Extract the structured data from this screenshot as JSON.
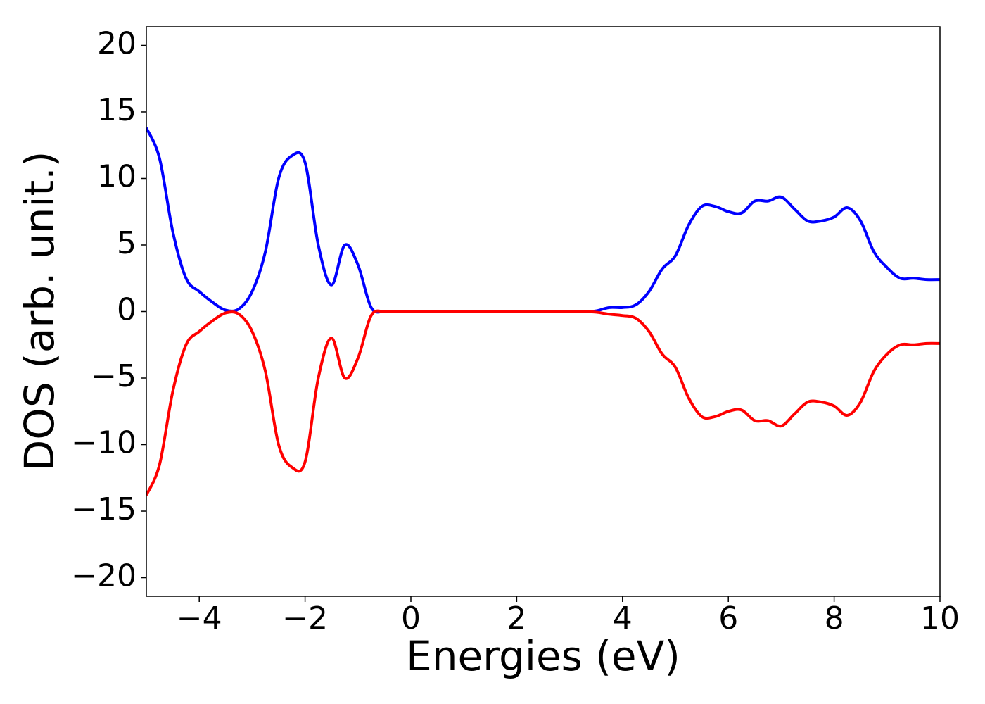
{
  "chart_data": {
    "type": "line",
    "xlabel": "Energies (eV)",
    "ylabel": "DOS (arb. unit.)",
    "x": [
      -5,
      -4.75,
      -4.5,
      -4.25,
      -4,
      -3.75,
      -3.5,
      -3.25,
      -3,
      -2.75,
      -2.5,
      -2.25,
      -2,
      -1.75,
      -1.5,
      -1.25,
      -1,
      -0.75,
      -0.5,
      -0.25,
      0,
      0.25,
      0.5,
      0.75,
      1,
      1.25,
      1.5,
      1.75,
      2,
      2.25,
      2.5,
      2.75,
      3,
      3.25,
      3.5,
      3.75,
      4,
      4.25,
      4.5,
      4.75,
      5,
      5.25,
      5.5,
      5.75,
      6,
      6.25,
      6.5,
      6.75,
      7,
      7.25,
      7.5,
      7.75,
      8,
      8.25,
      8.5,
      8.75,
      9,
      9.25,
      9.5,
      9.75,
      10
    ],
    "series": [
      {
        "color": "#0000ff",
        "values": [
          13.8,
          11.5,
          6,
          2.5,
          1.5,
          0.7,
          0.1,
          0.2,
          1.5,
          4.5,
          10,
          11.7,
          11.2,
          5,
          2,
          5,
          3.5,
          0.3,
          0,
          0,
          0,
          0,
          0,
          0,
          0,
          0,
          0,
          0,
          0,
          0,
          0,
          0,
          0,
          0,
          0.05,
          0.3,
          0.3,
          0.5,
          1.5,
          3.2,
          4.2,
          6.5,
          7.9,
          7.9,
          7.5,
          7.4,
          8.3,
          8.3,
          8.6,
          7.7,
          6.8,
          6.8,
          7.1,
          7.8,
          6.8,
          4.5,
          3.3,
          2.5,
          2.5,
          2.4,
          2.4
        ]
      },
      {
        "color": "#ff0000",
        "values": [
          -13.8,
          -11.5,
          -6,
          -2.5,
          -1.5,
          -0.7,
          -0.1,
          -0.2,
          -1.5,
          -4.5,
          -10,
          -11.7,
          -11.3,
          -5,
          -2,
          -5,
          -3.5,
          -0.3,
          0,
          0,
          0,
          0,
          0,
          0,
          0,
          0,
          0,
          0,
          0,
          0,
          0,
          0,
          0,
          0,
          -0.05,
          -0.2,
          -0.3,
          -0.5,
          -1.5,
          -3.2,
          -4.2,
          -6.5,
          -7.9,
          -7.9,
          -7.5,
          -7.4,
          -8.2,
          -8.2,
          -8.6,
          -7.7,
          -6.8,
          -6.8,
          -7.1,
          -7.8,
          -6.8,
          -4.5,
          -3.2,
          -2.5,
          -2.5,
          -2.4,
          -2.4
        ]
      }
    ],
    "xlim": [
      -5,
      10
    ],
    "ylim": [
      -21.4,
      21.4
    ],
    "xticks": [
      {
        "value": -4,
        "label": "−4"
      },
      {
        "value": -2,
        "label": "−2"
      },
      0,
      2,
      4,
      6,
      8,
      10
    ],
    "yticks": [
      {
        "value": -20,
        "label": "−20"
      },
      {
        "value": -15,
        "label": "−15"
      },
      {
        "value": -10,
        "label": "−10"
      },
      {
        "value": -5,
        "label": "−5"
      },
      0,
      5,
      10,
      15,
      20
    ]
  }
}
